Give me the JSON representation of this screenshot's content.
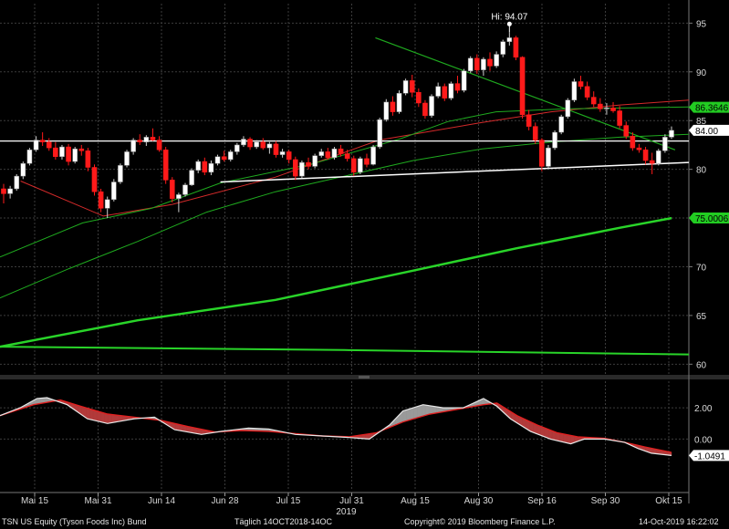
{
  "chart_data": {
    "type": "candlestick",
    "security": "TSN US Equity (Tyson Foods Inc) Bund",
    "x_ticks": [
      "Mai 15",
      "Mai 31",
      "Jun 14",
      "Jun 28",
      "Jul 15",
      "Jul 31",
      "Aug 15",
      "Aug 30",
      "Sep 16",
      "Sep 30",
      "Okt 15"
    ],
    "year_label": "2019",
    "price_axis": {
      "ylim": [
        59,
        97
      ],
      "ticks": [
        60,
        65,
        70,
        75,
        80,
        85,
        90,
        95
      ]
    },
    "macd_axis": {
      "ylim": [
        -3.3,
        3.7
      ],
      "ticks": [
        "2.00",
        "0.00"
      ]
    },
    "hi_label": "Hi: 94.07",
    "hi_value": 94.07,
    "price_tags": [
      {
        "label": "86.3646",
        "value": 86.3646,
        "color": "#22cc22"
      },
      {
        "label": "84.00",
        "value": 84.0,
        "color": "#ffffff"
      },
      {
        "label": "75.0006",
        "value": 75.0006,
        "color": "#22cc22"
      }
    ],
    "macd_tag": {
      "label": "-1.0491",
      "value": -1.0491
    },
    "support_level": 82.9,
    "trendline_rising": [
      [
        0.32,
        78.7
      ],
      [
        1.0,
        80.7
      ]
    ],
    "trendline_falling": [
      [
        0.545,
        93.5
      ],
      [
        0.98,
        82.0
      ]
    ],
    "ohlc": [
      [
        78.0,
        78.5,
        76.5,
        77.5
      ],
      [
        77.5,
        78.3,
        77.0,
        78.0
      ],
      [
        78.0,
        79.5,
        77.8,
        79.3
      ],
      [
        79.3,
        80.8,
        79.0,
        80.6
      ],
      [
        80.6,
        82.2,
        80.4,
        82.0
      ],
      [
        82.0,
        83.4,
        81.8,
        83.0
      ],
      [
        83.0,
        83.8,
        82.4,
        82.8
      ],
      [
        82.8,
        83.2,
        81.9,
        82.2
      ],
      [
        82.2,
        82.8,
        81.0,
        81.3
      ],
      [
        81.3,
        82.5,
        81.0,
        82.3
      ],
      [
        82.3,
        82.6,
        80.4,
        80.8
      ],
      [
        80.8,
        82.3,
        80.6,
        82.1
      ],
      [
        82.1,
        82.5,
        81.4,
        81.9
      ],
      [
        81.9,
        82.2,
        79.8,
        80.2
      ],
      [
        80.2,
        80.5,
        77.3,
        77.7
      ],
      [
        77.7,
        78.0,
        75.6,
        76.0
      ],
      [
        76.0,
        77.2,
        75.0,
        76.9
      ],
      [
        76.9,
        79.0,
        76.7,
        78.7
      ],
      [
        78.7,
        80.6,
        78.5,
        80.4
      ],
      [
        80.4,
        82.0,
        80.2,
        81.8
      ],
      [
        81.8,
        83.2,
        81.5,
        83.0
      ],
      [
        83.0,
        83.6,
        82.5,
        82.8
      ],
      [
        82.8,
        83.5,
        82.4,
        83.3
      ],
      [
        83.3,
        84.2,
        82.9,
        83.0
      ],
      [
        83.0,
        83.4,
        81.8,
        82.0
      ],
      [
        82.0,
        82.3,
        78.5,
        78.9
      ],
      [
        78.9,
        79.2,
        76.6,
        77.0
      ],
      [
        77.0,
        77.6,
        75.6,
        77.4
      ],
      [
        77.4,
        78.6,
        77.2,
        78.4
      ],
      [
        78.4,
        80.1,
        78.3,
        79.9
      ],
      [
        79.9,
        81.0,
        79.6,
        80.8
      ],
      [
        80.8,
        81.2,
        79.4,
        79.7
      ],
      [
        79.7,
        80.9,
        79.4,
        80.6
      ],
      [
        80.6,
        81.5,
        80.4,
        81.3
      ],
      [
        81.3,
        81.9,
        80.8,
        81.0
      ],
      [
        81.0,
        82.0,
        80.8,
        81.8
      ],
      [
        81.8,
        82.7,
        81.5,
        82.5
      ],
      [
        82.5,
        83.4,
        82.3,
        83.1
      ],
      [
        83.1,
        83.3,
        82.0,
        82.3
      ],
      [
        82.3,
        83.0,
        82.1,
        82.8
      ],
      [
        82.8,
        83.2,
        82.0,
        82.2
      ],
      [
        82.2,
        82.8,
        81.6,
        82.6
      ],
      [
        82.6,
        82.9,
        81.2,
        81.5
      ],
      [
        81.5,
        82.1,
        81.2,
        81.8
      ],
      [
        81.8,
        82.0,
        80.6,
        81.0
      ],
      [
        81.0,
        81.3,
        78.9,
        79.3
      ],
      [
        79.3,
        80.9,
        79.1,
        80.7
      ],
      [
        80.7,
        81.2,
        80.0,
        80.3
      ],
      [
        80.3,
        81.6,
        80.1,
        81.4
      ],
      [
        81.4,
        82.1,
        81.2,
        81.8
      ],
      [
        81.8,
        82.2,
        81.0,
        81.2
      ],
      [
        81.2,
        82.3,
        81.0,
        82.1
      ],
      [
        82.1,
        82.5,
        81.3,
        81.6
      ],
      [
        81.6,
        82.0,
        80.8,
        81.1
      ],
      [
        81.1,
        81.4,
        79.3,
        79.7
      ],
      [
        79.7,
        81.3,
        79.5,
        81.1
      ],
      [
        81.1,
        81.6,
        80.2,
        80.5
      ],
      [
        80.5,
        82.5,
        80.4,
        82.3
      ],
      [
        82.3,
        85.3,
        82.1,
        85.1
      ],
      [
        85.1,
        87.2,
        84.9,
        86.9
      ],
      [
        86.9,
        87.5,
        85.5,
        85.9
      ],
      [
        85.9,
        88.1,
        85.7,
        87.8
      ],
      [
        87.8,
        89.3,
        87.6,
        89.1
      ],
      [
        89.1,
        89.7,
        87.4,
        87.9
      ],
      [
        87.9,
        88.3,
        86.4,
        86.8
      ],
      [
        86.8,
        87.1,
        85.2,
        85.5
      ],
      [
        85.5,
        87.7,
        85.3,
        87.5
      ],
      [
        87.5,
        88.9,
        87.3,
        88.5
      ],
      [
        88.5,
        88.8,
        87.0,
        87.3
      ],
      [
        87.3,
        89.0,
        87.1,
        88.8
      ],
      [
        88.8,
        89.6,
        87.8,
        88.1
      ],
      [
        88.1,
        90.3,
        87.9,
        90.1
      ],
      [
        90.1,
        91.6,
        89.9,
        91.4
      ],
      [
        91.4,
        91.8,
        89.8,
        90.2
      ],
      [
        90.2,
        91.5,
        89.6,
        91.3
      ],
      [
        91.3,
        92.0,
        90.1,
        90.6
      ],
      [
        90.6,
        92.1,
        90.4,
        91.8
      ],
      [
        91.8,
        93.3,
        91.5,
        93.1
      ],
      [
        93.1,
        94.07,
        92.7,
        93.5
      ],
      [
        93.5,
        93.7,
        91.2,
        91.5
      ],
      [
        91.5,
        91.6,
        85.2,
        85.6
      ],
      [
        85.6,
        86.1,
        84.0,
        84.4
      ],
      [
        84.4,
        84.8,
        82.6,
        83.0
      ],
      [
        83.0,
        83.2,
        79.8,
        80.3
      ],
      [
        80.3,
        82.5,
        80.1,
        82.2
      ],
      [
        82.2,
        84.0,
        82.0,
        83.8
      ],
      [
        83.8,
        85.6,
        83.6,
        85.4
      ],
      [
        85.4,
        87.3,
        85.2,
        87.1
      ],
      [
        87.1,
        89.3,
        86.9,
        89.0
      ],
      [
        89.0,
        89.6,
        88.2,
        88.5
      ],
      [
        88.5,
        89.0,
        87.1,
        87.4
      ],
      [
        87.4,
        88.0,
        86.4,
        86.7
      ],
      [
        86.7,
        87.3,
        85.9,
        86.2
      ],
      [
        86.2,
        86.8,
        85.6,
        86.3
      ],
      [
        86.3,
        86.9,
        85.8,
        86.0
      ],
      [
        86.0,
        86.5,
        84.2,
        84.5
      ],
      [
        84.5,
        84.9,
        83.1,
        83.4
      ],
      [
        83.4,
        83.8,
        81.9,
        82.2
      ],
      [
        82.2,
        82.6,
        81.7,
        82.0
      ],
      [
        82.0,
        82.3,
        80.5,
        80.9
      ],
      [
        80.9,
        81.7,
        79.5,
        80.6
      ],
      [
        80.6,
        82.1,
        80.4,
        81.9
      ],
      [
        81.9,
        83.6,
        81.7,
        83.3
      ],
      [
        83.3,
        84.4,
        83.1,
        84.0
      ]
    ],
    "ma_series": [
      {
        "name": "ma-red",
        "color": "#d42a2a",
        "width": 1,
        "from": 0.03,
        "points": [
          [
            0.03,
            78.8
          ],
          [
            0.15,
            75.2
          ],
          [
            0.25,
            76.4
          ],
          [
            0.4,
            79.2
          ],
          [
            0.55,
            83.0
          ],
          [
            0.7,
            84.8
          ],
          [
            0.8,
            85.9
          ],
          [
            0.9,
            86.6
          ],
          [
            1.0,
            87.1
          ]
        ]
      },
      {
        "name": "ma-green-1",
        "color": "#1faa1f",
        "width": 1,
        "from": 0.0,
        "points": [
          [
            0.0,
            71.0
          ],
          [
            0.12,
            74.5
          ],
          [
            0.22,
            76.0
          ],
          [
            0.32,
            78.6
          ],
          [
            0.45,
            80.5
          ],
          [
            0.58,
            83.1
          ],
          [
            0.65,
            84.9
          ],
          [
            0.72,
            85.9
          ],
          [
            0.82,
            86.2
          ],
          [
            0.92,
            86.3
          ],
          [
            1.0,
            86.4
          ]
        ]
      },
      {
        "name": "ma-green-2",
        "color": "#1faa1f",
        "width": 1,
        "from": 0.0,
        "points": [
          [
            0.0,
            66.8
          ],
          [
            0.1,
            69.8
          ],
          [
            0.2,
            72.6
          ],
          [
            0.3,
            75.6
          ],
          [
            0.4,
            77.7
          ],
          [
            0.5,
            79.3
          ],
          [
            0.6,
            80.9
          ],
          [
            0.7,
            82.1
          ],
          [
            0.8,
            82.8
          ],
          [
            0.9,
            83.3
          ],
          [
            1.0,
            83.6
          ]
        ]
      },
      {
        "name": "ma-green-3",
        "color": "#29d429",
        "width": 2.5,
        "from": 0.0,
        "points": [
          [
            0.0,
            61.8
          ],
          [
            0.2,
            64.5
          ],
          [
            0.4,
            66.6
          ],
          [
            0.6,
            69.6
          ],
          [
            0.75,
            71.9
          ],
          [
            0.9,
            74.0
          ],
          [
            0.975,
            75.0
          ]
        ]
      },
      {
        "name": "ma-green-4",
        "color": "#29d429",
        "width": 2,
        "from": 0.0,
        "points": [
          [
            0.0,
            61.8
          ],
          [
            0.5,
            61.45
          ],
          [
            1.0,
            61.0
          ]
        ]
      }
    ],
    "macd": {
      "macd_points": [
        [
          0.0,
          1.5
        ],
        [
          0.03,
          2.0
        ],
        [
          0.055,
          2.6
        ],
        [
          0.07,
          2.65
        ],
        [
          0.1,
          2.2
        ],
        [
          0.13,
          1.3
        ],
        [
          0.16,
          1.0
        ],
        [
          0.2,
          1.3
        ],
        [
          0.23,
          1.4
        ],
        [
          0.26,
          0.6
        ],
        [
          0.3,
          0.3
        ],
        [
          0.33,
          0.5
        ],
        [
          0.37,
          0.7
        ],
        [
          0.4,
          0.65
        ],
        [
          0.44,
          0.3
        ],
        [
          0.48,
          0.2
        ],
        [
          0.52,
          0.1
        ],
        [
          0.55,
          0.0
        ],
        [
          0.58,
          0.9
        ],
        [
          0.6,
          1.8
        ],
        [
          0.63,
          2.2
        ],
        [
          0.66,
          2.0
        ],
        [
          0.69,
          2.0
        ],
        [
          0.72,
          2.6
        ],
        [
          0.74,
          2.1
        ],
        [
          0.76,
          1.3
        ],
        [
          0.79,
          0.5
        ],
        [
          0.82,
          0.0
        ],
        [
          0.85,
          -0.3
        ],
        [
          0.87,
          0.0
        ],
        [
          0.9,
          0.0
        ],
        [
          0.93,
          -0.2
        ],
        [
          0.95,
          -0.6
        ],
        [
          0.97,
          -0.9
        ],
        [
          1.0,
          -1.0491
        ]
      ],
      "signal_points": [
        [
          0.0,
          1.5
        ],
        [
          0.05,
          2.2
        ],
        [
          0.09,
          2.5
        ],
        [
          0.12,
          2.1
        ],
        [
          0.16,
          1.6
        ],
        [
          0.2,
          1.4
        ],
        [
          0.24,
          1.2
        ],
        [
          0.28,
          0.8
        ],
        [
          0.32,
          0.45
        ],
        [
          0.36,
          0.55
        ],
        [
          0.4,
          0.5
        ],
        [
          0.44,
          0.35
        ],
        [
          0.48,
          0.2
        ],
        [
          0.52,
          0.15
        ],
        [
          0.56,
          0.4
        ],
        [
          0.6,
          1.1
        ],
        [
          0.64,
          1.6
        ],
        [
          0.68,
          1.9
        ],
        [
          0.72,
          2.2
        ],
        [
          0.74,
          2.3
        ],
        [
          0.77,
          1.5
        ],
        [
          0.8,
          0.9
        ],
        [
          0.83,
          0.4
        ],
        [
          0.86,
          0.15
        ],
        [
          0.9,
          0.05
        ],
        [
          0.93,
          -0.2
        ],
        [
          0.96,
          -0.5
        ],
        [
          1.0,
          -0.85
        ]
      ]
    }
  },
  "footer": {
    "security": "TSN US Equity (Tyson Foods Inc) Bund",
    "period": "Täglich 14OCT2018-14OC",
    "copyright": "Copyright© 2019 Bloomberg Finance L.P.",
    "timestamp": "14-Oct-2019 16:22:02"
  }
}
